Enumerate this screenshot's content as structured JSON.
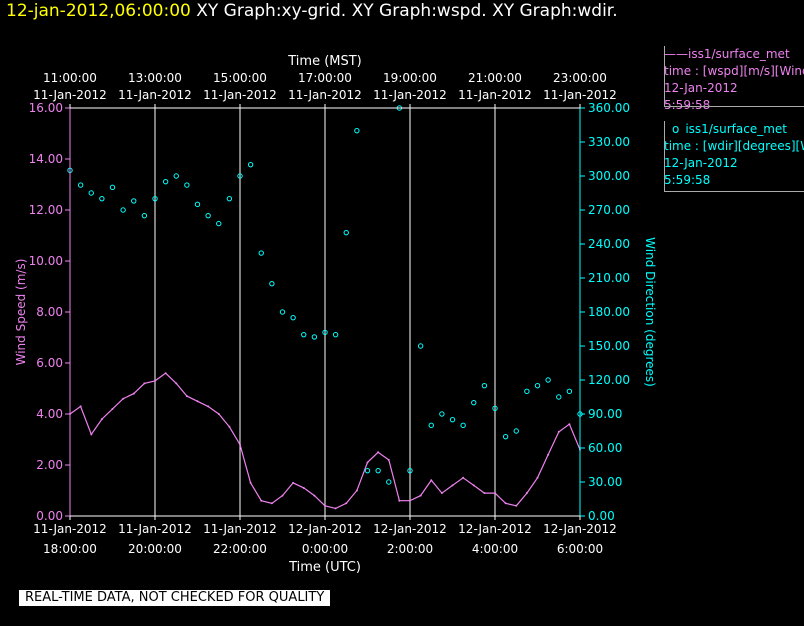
{
  "header": {
    "timestamp": "12-jan-2012,06:00:00",
    "graphs": "XY Graph:xy-grid.  XY Graph:wspd.  XY Graph:wdir."
  },
  "legend": {
    "line_series": {
      "name": "iss1/surface_met",
      "desc": "time : [wspd][m/s][Wind",
      "date": "12-Jan-2012",
      "time": "5:59:58"
    },
    "point_series": {
      "name": "iss1/surface_met",
      "desc": "time : [wdir][degrees][W",
      "date": "12-Jan-2012",
      "time": "5:59:58"
    }
  },
  "notice": "REAL-TIME DATA, NOT CHECKED FOR QUALITY",
  "colors": {
    "wspd": "#ee82ee",
    "wdir": "#00ffff",
    "grid": "#ffffff",
    "background": "#000000"
  },
  "chart_data": {
    "type": "line",
    "top_xlabel": "Time (MST)",
    "bottom_xlabel": "Time (UTC)",
    "ylabel_left": "Wind Speed (m/s)",
    "ylabel_right": "Wind Direction (degrees)",
    "top_ticks": [
      {
        "time": "11:00:00",
        "date": "11-Jan-2012"
      },
      {
        "time": "13:00:00",
        "date": "11-Jan-2012"
      },
      {
        "time": "15:00:00",
        "date": "11-Jan-2012"
      },
      {
        "time": "17:00:00",
        "date": "11-Jan-2012"
      },
      {
        "time": "19:00:00",
        "date": "11-Jan-2012"
      },
      {
        "time": "21:00:00",
        "date": "11-Jan-2012"
      },
      {
        "time": "23:00:00",
        "date": "11-Jan-2012"
      }
    ],
    "bottom_ticks": [
      {
        "date": "11-Jan-2012",
        "time": "18:00:00"
      },
      {
        "date": "11-Jan-2012",
        "time": "20:00:00"
      },
      {
        "date": "11-Jan-2012",
        "time": "22:00:00"
      },
      {
        "date": "12-Jan-2012",
        "time": "0:00:00"
      },
      {
        "date": "12-Jan-2012",
        "time": "2:00:00"
      },
      {
        "date": "12-Jan-2012",
        "time": "4:00:00"
      },
      {
        "date": "12-Jan-2012",
        "time": "6:00:00"
      }
    ],
    "left_ticks": [
      "0.00",
      "2.00",
      "4.00",
      "6.00",
      "8.00",
      "10.00",
      "12.00",
      "14.00",
      "16.00"
    ],
    "right_ticks": [
      "0.00",
      "30.00",
      "60.00",
      "90.00",
      "120.00",
      "150.00",
      "180.00",
      "210.00",
      "240.00",
      "270.00",
      "300.00",
      "330.00",
      "360.00"
    ],
    "x_range_utc_hours": [
      18,
      30
    ],
    "ylim_left": [
      0,
      16
    ],
    "ylim_right": [
      0,
      360
    ],
    "grid": "vertical lines at each labeled time",
    "series": [
      {
        "name": "iss1/surface_met",
        "variable": "wspd",
        "axis": "left",
        "style": "line",
        "x": [
          18.0,
          18.25,
          18.5,
          18.75,
          19.0,
          19.25,
          19.5,
          19.75,
          20.0,
          20.25,
          20.5,
          20.75,
          21.0,
          21.25,
          21.5,
          21.75,
          22.0,
          22.25,
          22.5,
          22.75,
          23.0,
          23.25,
          23.5,
          23.75,
          24.0,
          24.25,
          24.5,
          24.75,
          25.0,
          25.25,
          25.5,
          25.75,
          26.0,
          26.25,
          26.5,
          26.75,
          27.0,
          27.25,
          27.5,
          27.75,
          28.0,
          28.25,
          28.5,
          28.75,
          29.0,
          29.25,
          29.5,
          29.75,
          30.0
        ],
        "y": [
          4.0,
          4.3,
          3.2,
          3.8,
          4.2,
          4.6,
          4.8,
          5.2,
          5.3,
          5.6,
          5.2,
          4.7,
          4.5,
          4.3,
          4.0,
          3.5,
          2.8,
          1.3,
          0.6,
          0.5,
          0.8,
          1.3,
          1.1,
          0.8,
          0.4,
          0.3,
          0.5,
          1.0,
          2.1,
          2.5,
          2.2,
          0.6,
          0.6,
          0.8,
          1.4,
          0.9,
          1.2,
          1.5,
          1.2,
          0.9,
          0.9,
          0.5,
          0.4,
          0.9,
          1.5,
          2.4,
          3.3,
          3.6,
          2.6
        ]
      },
      {
        "name": "iss1/surface_met",
        "variable": "wdir",
        "axis": "right",
        "style": "points",
        "x": [
          18.0,
          18.25,
          18.5,
          18.75,
          19.0,
          19.25,
          19.5,
          19.75,
          20.0,
          20.25,
          20.5,
          20.75,
          21.0,
          21.25,
          21.5,
          21.75,
          22.0,
          22.25,
          22.5,
          22.75,
          23.0,
          23.25,
          23.5,
          23.75,
          24.0,
          24.25,
          24.5,
          24.75,
          25.0,
          25.25,
          25.5,
          25.75,
          26.0,
          26.25,
          26.5,
          26.75,
          27.0,
          27.25,
          27.5,
          27.75,
          28.0,
          28.25,
          28.5,
          28.75,
          29.0,
          29.25,
          29.5,
          29.75,
          30.0
        ],
        "y": [
          305,
          292,
          285,
          280,
          290,
          270,
          278,
          265,
          280,
          295,
          300,
          292,
          275,
          265,
          258,
          280,
          300,
          310,
          232,
          205,
          180,
          175,
          160,
          158,
          162,
          160,
          250,
          340,
          40,
          40,
          30,
          360,
          40,
          150,
          80,
          90,
          85,
          80,
          100,
          115,
          95,
          70,
          75,
          110,
          115,
          120,
          105,
          110,
          90
        ]
      }
    ]
  }
}
